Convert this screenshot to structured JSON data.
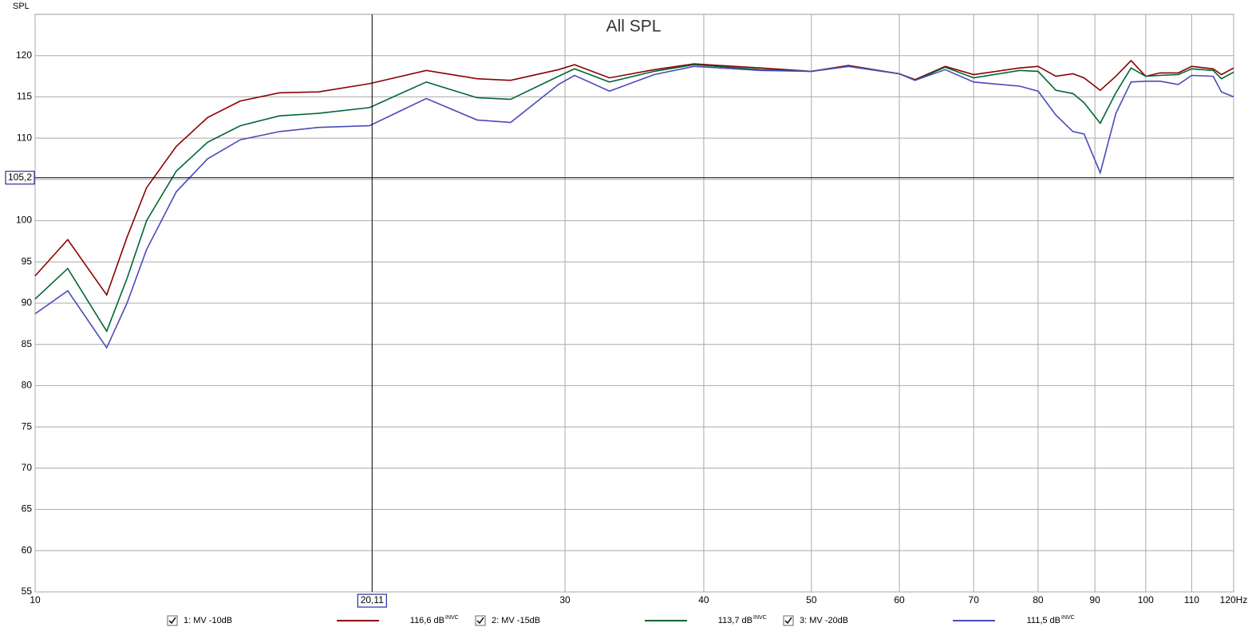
{
  "chart_data": {
    "type": "line",
    "title": "All SPL",
    "y_label": "SPL",
    "xscale": "log",
    "grid": true,
    "xlim": [
      10,
      120
    ],
    "ylim": [
      55,
      125
    ],
    "yticks": [
      55,
      60,
      65,
      70,
      75,
      80,
      85,
      90,
      95,
      100,
      105,
      110,
      115,
      120
    ],
    "xticks": [
      10,
      30,
      40,
      50,
      60,
      70,
      80,
      90,
      100,
      110,
      {
        "value": 120,
        "label": "120Hz"
      }
    ],
    "cursor_x": {
      "value": 20.11,
      "label": "20,11"
    },
    "cursor_y": {
      "value": 105.2,
      "label": "105,2"
    },
    "x": [
      10,
      10.7,
      11.6,
      12.1,
      12.6,
      13.4,
      14.3,
      15.3,
      16.6,
      18,
      20,
      22.5,
      25,
      26.8,
      29.6,
      30.6,
      32.9,
      36.1,
      39.2,
      45,
      50,
      54,
      60,
      62,
      66,
      70,
      77,
      80,
      83,
      86,
      88,
      91,
      94,
      97,
      100,
      103,
      107,
      110,
      115,
      117,
      120
    ],
    "series": [
      {
        "name": "1: MV -10dB",
        "color": "#8b0000",
        "cursor_value": {
          "value": 116.6,
          "label": "116,6 dB"
        },
        "flag": "INVC",
        "values": [
          93.3,
          97.7,
          91,
          98,
          104,
          109,
          112.5,
          114.5,
          115.5,
          115.6,
          116.6,
          118.2,
          117.2,
          117,
          118.3,
          118.9,
          117.3,
          118.3,
          119,
          118.5,
          118.1,
          118.8,
          117.8,
          117.1,
          118.7,
          117.7,
          118.5,
          118.7,
          117.5,
          117.8,
          117.3,
          115.8,
          117.5,
          119.4,
          117.5,
          117.9,
          117.9,
          118.7,
          118.4,
          117.7,
          118.5
        ]
      },
      {
        "name": "2: MV -15dB",
        "color": "#006633",
        "cursor_value": {
          "value": 113.7,
          "label": "113,7 dB"
        },
        "flag": "INVC",
        "values": [
          90.5,
          94.2,
          86.6,
          93,
          100,
          106,
          109.5,
          111.5,
          112.7,
          113,
          113.7,
          116.8,
          114.9,
          114.7,
          117.5,
          118.4,
          116.8,
          118.1,
          118.9,
          118.3,
          118.1,
          118.7,
          117.8,
          117,
          118.6,
          117.3,
          118.2,
          118.1,
          115.8,
          115.4,
          114.3,
          111.8,
          115.5,
          118.5,
          117.5,
          117.6,
          117.7,
          118.4,
          118.2,
          117.2,
          118
        ]
      },
      {
        "name": "3: MV -20dB",
        "color": "#4a4ab8",
        "cursor_value": {
          "value": 111.5,
          "label": "111,5 dB"
        },
        "flag": "INVC",
        "values": [
          88.7,
          91.5,
          84.6,
          90,
          96.5,
          103.5,
          107.5,
          109.8,
          110.8,
          111.3,
          111.5,
          114.8,
          112.2,
          111.9,
          116.5,
          117.6,
          115.7,
          117.7,
          118.7,
          118.2,
          118.1,
          118.7,
          117.8,
          117,
          118.3,
          116.8,
          116.3,
          115.7,
          112.8,
          110.8,
          110.5,
          105.8,
          113,
          116.8,
          116.9,
          116.9,
          116.5,
          117.6,
          117.5,
          115.6,
          115
        ]
      }
    ]
  }
}
